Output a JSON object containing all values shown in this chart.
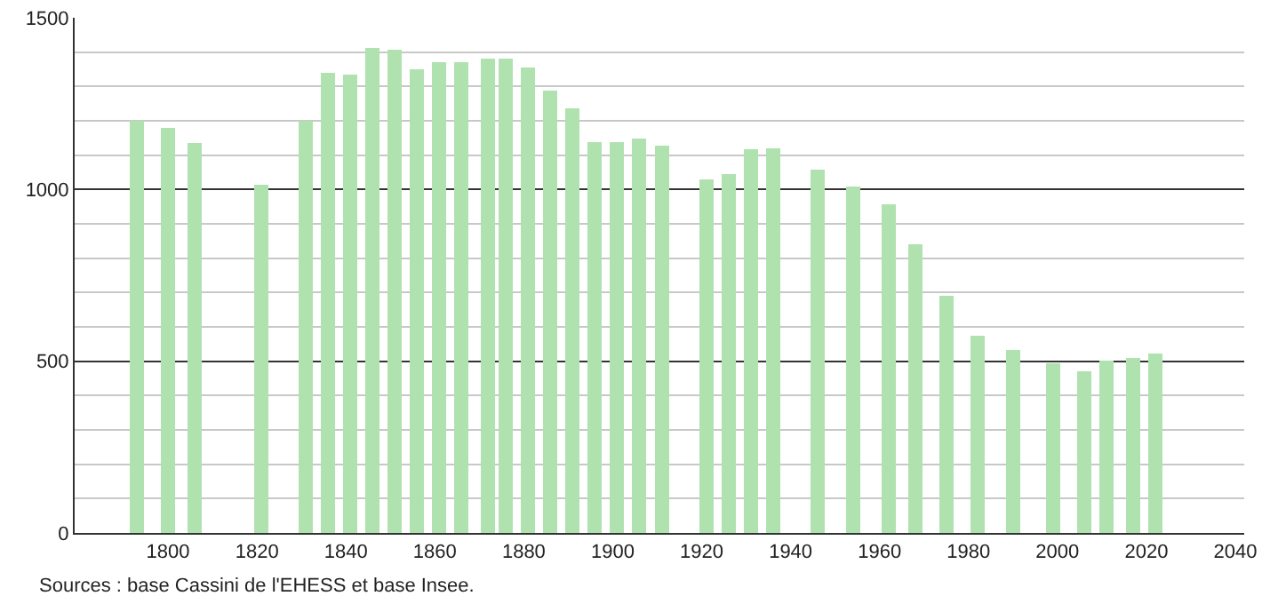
{
  "chart_data": {
    "type": "bar",
    "x": [
      1793,
      1800,
      1806,
      1821,
      1831,
      1836,
      1841,
      1846,
      1851,
      1856,
      1861,
      1866,
      1872,
      1876,
      1881,
      1886,
      1891,
      1896,
      1901,
      1906,
      1911,
      1921,
      1926,
      1931,
      1936,
      1946,
      1954,
      1962,
      1968,
      1975,
      1982,
      1990,
      1999,
      2006,
      2011,
      2017,
      2022
    ],
    "values": [
      1200,
      1180,
      1135,
      1015,
      1200,
      1340,
      1334,
      1412,
      1407,
      1350,
      1371,
      1371,
      1381,
      1381,
      1355,
      1288,
      1236,
      1138,
      1138,
      1148,
      1128,
      1029,
      1045,
      1117,
      1121,
      1057,
      1009,
      957,
      840,
      690,
      574,
      534,
      495,
      471,
      503,
      509,
      522
    ],
    "color": "#b0e2b0",
    "xlim": [
      1779,
      2042
    ],
    "xticks": [
      1800,
      1820,
      1840,
      1860,
      1880,
      1900,
      1920,
      1940,
      1960,
      1980,
      2000,
      2020,
      2040
    ],
    "ylim": [
      0,
      1500
    ],
    "yticks": [
      0,
      500,
      1000,
      1500
    ],
    "grid": "y",
    "annotations": [
      "Sources : base Cassini de l'EHESS et base Insee."
    ]
  }
}
